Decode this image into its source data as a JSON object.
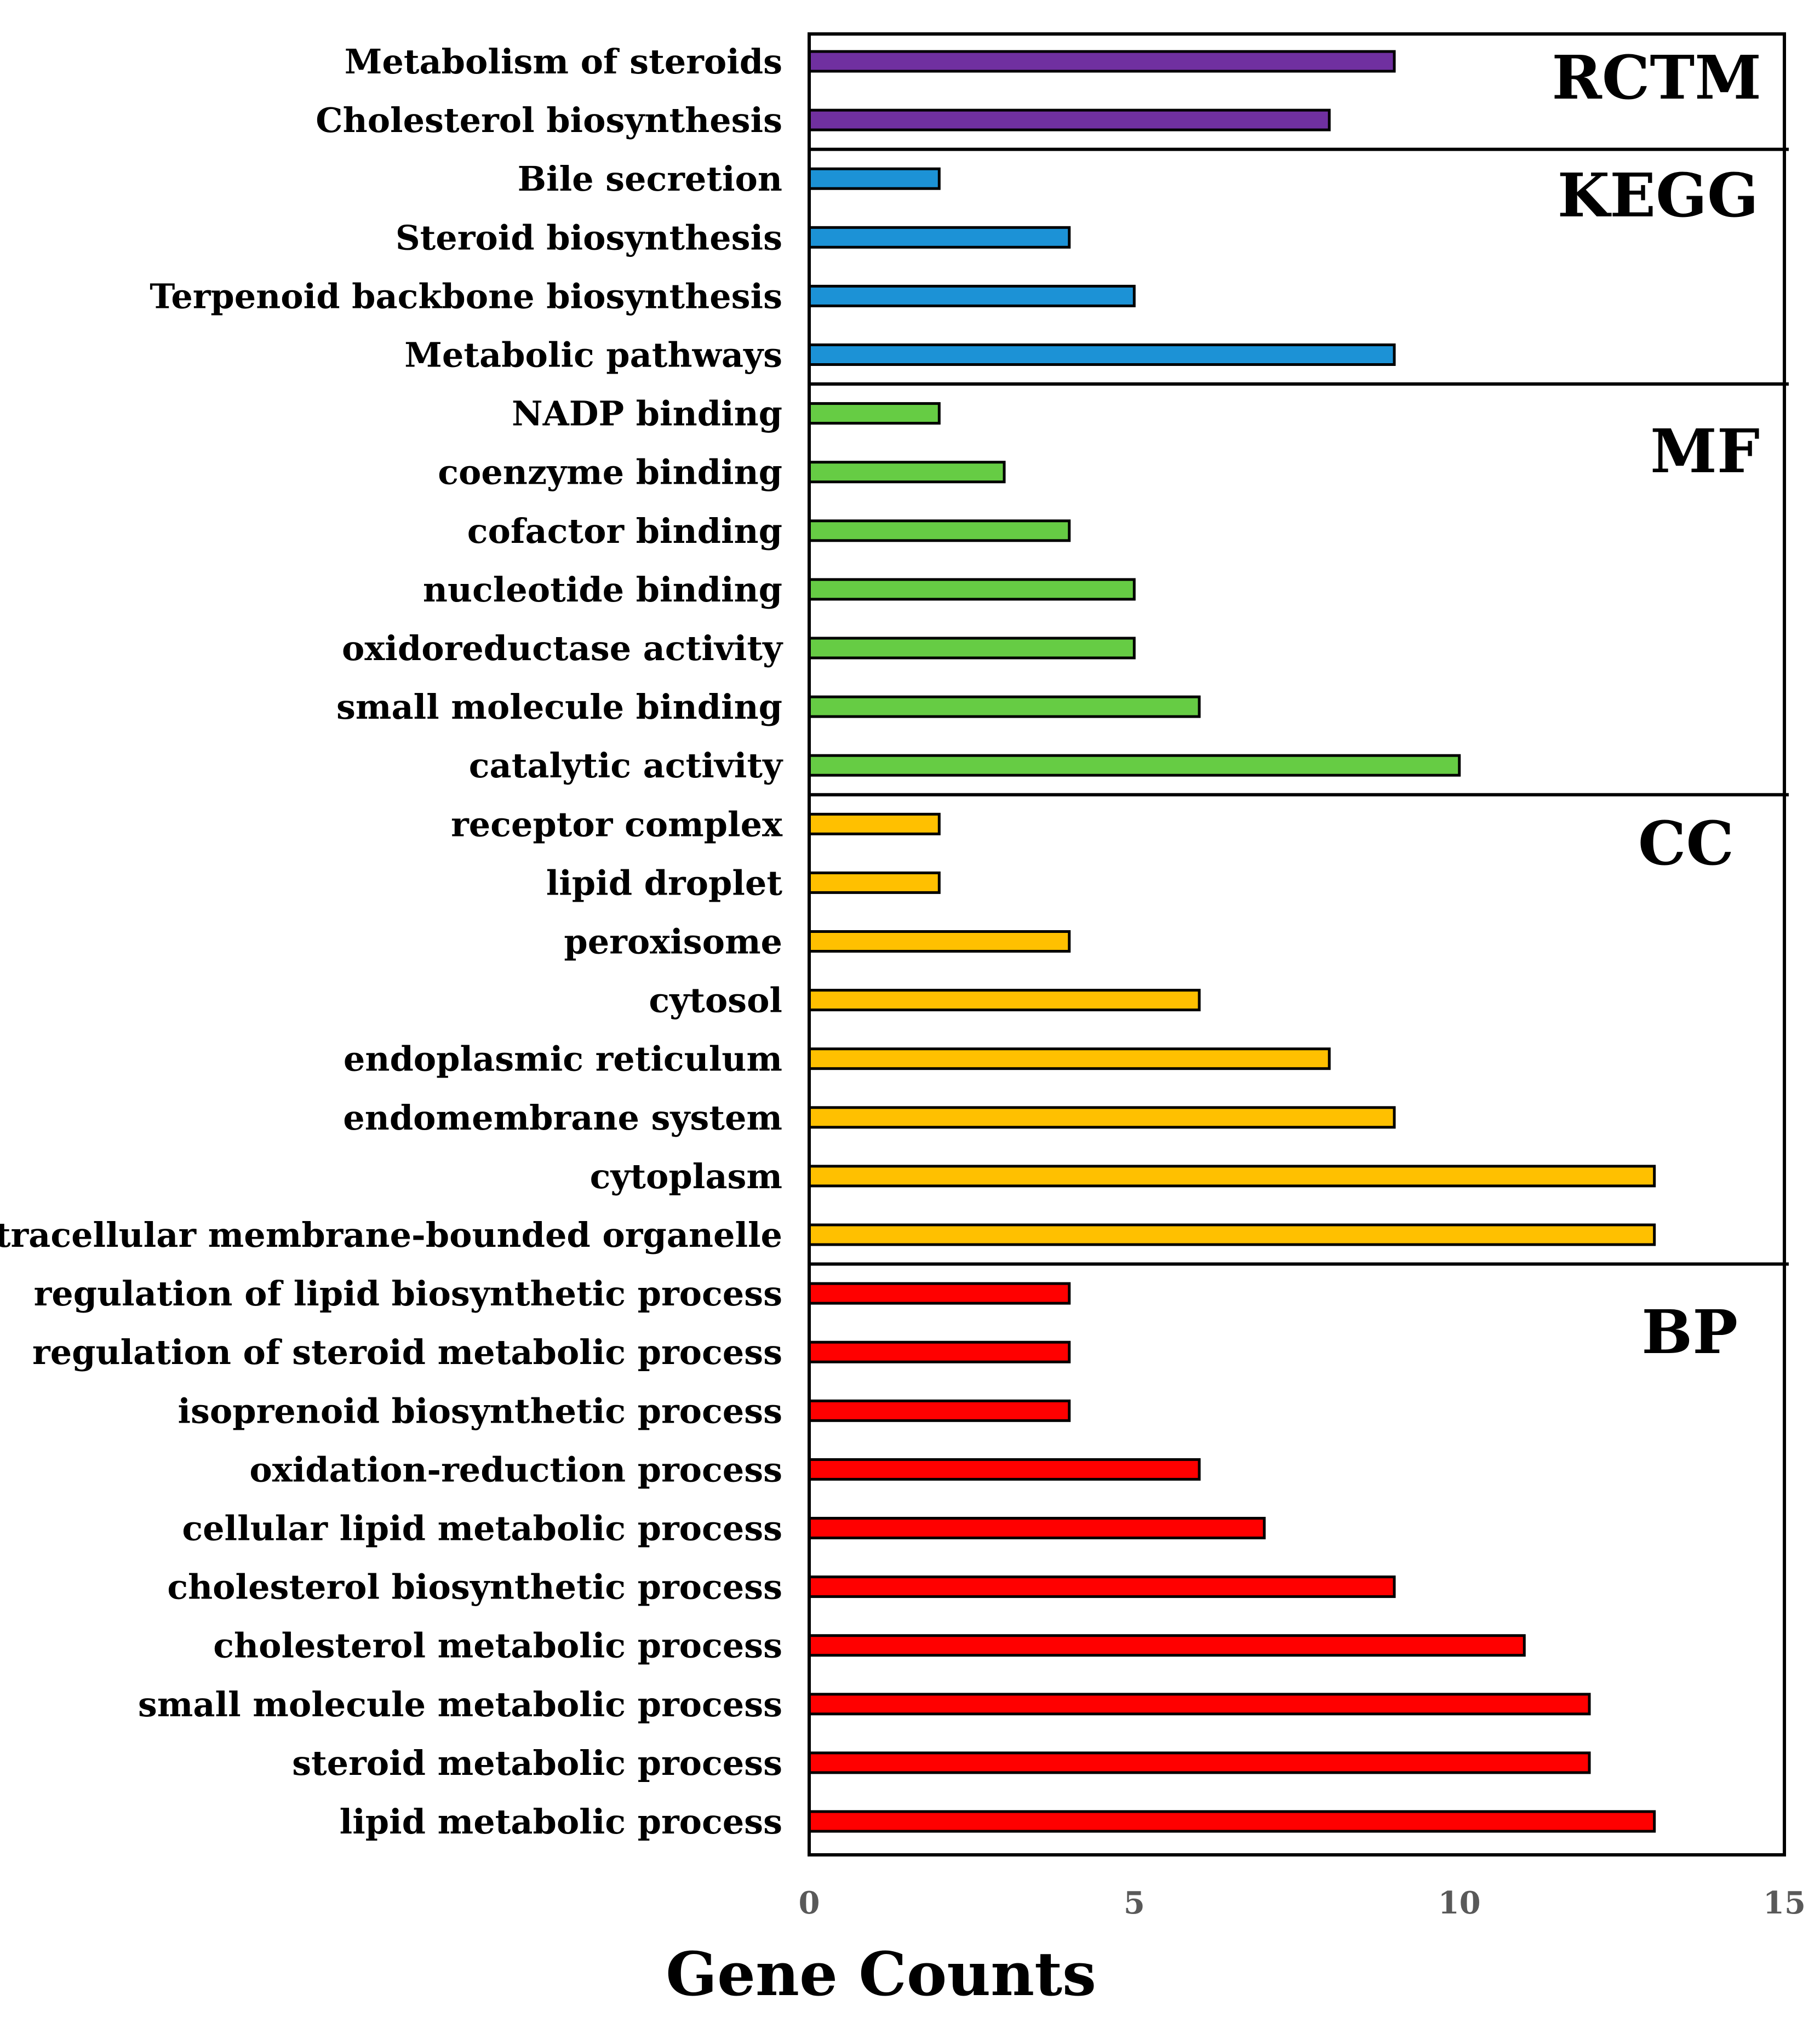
{
  "chart_data": {
    "type": "bar",
    "orientation": "horizontal",
    "xlabel": "Gene Counts",
    "ylabel": "",
    "xlim": [
      0,
      15
    ],
    "xticks": [
      0,
      5,
      10,
      15
    ],
    "grid": false,
    "groups": [
      {
        "name": "RCTM",
        "color": "#7030A0",
        "categories": [
          "Metabolism of steroids",
          "Cholesterol biosynthesis"
        ],
        "values": [
          9,
          8
        ]
      },
      {
        "name": "KEGG",
        "color": "#1C92D6",
        "categories": [
          "Bile secretion",
          "Steroid biosynthesis",
          "Terpenoid backbone biosynthesis",
          "Metabolic pathways"
        ],
        "values": [
          2,
          4,
          5,
          9
        ]
      },
      {
        "name": "MF",
        "color": "#66CC44",
        "categories": [
          "NADP binding",
          "coenzyme binding",
          "cofactor binding",
          "nucleotide binding",
          "oxidoreductase activity",
          "small molecule binding",
          "catalytic activity"
        ],
        "values": [
          2,
          3,
          4,
          5,
          5,
          6,
          10
        ]
      },
      {
        "name": "CC",
        "color": "#FFC000",
        "categories": [
          "receptor complex",
          "lipid droplet",
          "peroxisome",
          "cytosol",
          "endoplasmic reticulum",
          "endomembrane system",
          "cytoplasm",
          "intracellular membrane-bounded organelle"
        ],
        "values": [
          2,
          2,
          4,
          6,
          8,
          9,
          13,
          13
        ]
      },
      {
        "name": "BP",
        "color": "#FF0000",
        "categories": [
          "regulation of lipid biosynthetic process",
          "regulation of steroid metabolic process",
          "isoprenoid biosynthetic process",
          "oxidation-reduction process",
          "cellular lipid metabolic process",
          "cholesterol biosynthetic process",
          "cholesterol metabolic process",
          "small molecule metabolic process",
          "steroid metabolic process",
          "lipid metabolic process"
        ],
        "values": [
          4,
          4,
          4,
          6,
          7,
          9,
          11,
          12,
          12,
          13
        ]
      }
    ]
  }
}
